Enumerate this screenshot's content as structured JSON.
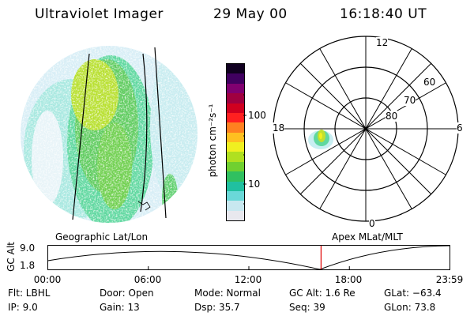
{
  "header": {
    "title": "Ultraviolet Imager",
    "date": "29 May 00",
    "time": "16:18:40 UT"
  },
  "colorbar": {
    "label": "photon cm⁻²s⁻¹",
    "ticks": [
      "100",
      "10"
    ],
    "colors": [
      "#e8e8ee",
      "#c8e8f0",
      "#6ad8d8",
      "#20c0a0",
      "#30c060",
      "#70d030",
      "#b0e020",
      "#f0f020",
      "#ffc020",
      "#ff8020",
      "#ff2020",
      "#d00020",
      "#a00040",
      "#800070",
      "#400060",
      "#100020"
    ]
  },
  "left_panel": {
    "label": "Geographic Lat/Lon"
  },
  "right_panel": {
    "label": "Apex MLat/MLT",
    "mlt_labels": [
      "12",
      "18",
      "6",
      "0"
    ],
    "mlat_labels": [
      "60",
      "70",
      "80"
    ]
  },
  "altitude_plot": {
    "ylabel": "GC Alt",
    "yticks": [
      "9.0",
      "1.8"
    ],
    "xticks": [
      "00:00",
      "06:00",
      "12:00",
      "18:00",
      "23:59"
    ],
    "current_time_hours": 16.31,
    "marker_color": "#e00000"
  },
  "metadata": {
    "flt": "Flt: LBHL",
    "ip": "IP:  9.0",
    "door": "Door: Open",
    "gain": "Gain: 13",
    "mode": "Mode: Normal",
    "dsp": "Dsp:   35.7",
    "gc_alt": "GC Alt: 1.6 Re",
    "seq": "Seq: 39",
    "glat": "GLat: −63.4",
    "glon": "GLon:  73.8"
  }
}
